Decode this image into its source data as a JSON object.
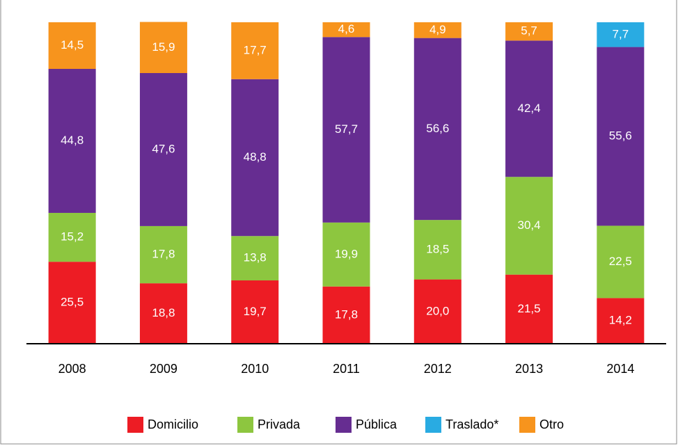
{
  "chart_data": {
    "type": "stacked_bar",
    "categories": [
      "2008",
      "2009",
      "2010",
      "2011",
      "2012",
      "2013",
      "2014"
    ],
    "series": [
      {
        "name": "Domicilio",
        "color": "#ed1c24",
        "values": [
          25.5,
          18.8,
          19.7,
          17.8,
          20.0,
          21.5,
          14.2
        ],
        "value_labels": [
          "25,5",
          "18,8",
          "19,7",
          "17,8",
          "20,0",
          "21,5",
          "14,2"
        ]
      },
      {
        "name": "Privada",
        "color": "#8dc63f",
        "values": [
          15.2,
          17.8,
          13.8,
          19.9,
          18.5,
          30.4,
          22.5
        ],
        "value_labels": [
          "15,2",
          "17,8",
          "13,8",
          "19,9",
          "18,5",
          "30,4",
          "22,5"
        ]
      },
      {
        "name": "Pública",
        "color": "#662d91",
        "values": [
          44.8,
          47.6,
          48.8,
          57.7,
          56.6,
          42.4,
          55.6
        ],
        "value_labels": [
          "44,8",
          "47,6",
          "48,8",
          "57,7",
          "56,6",
          "42,4",
          "55,6"
        ]
      },
      {
        "name": "Traslado*",
        "color": "#29abe2",
        "values": [
          null,
          null,
          null,
          null,
          null,
          null,
          7.7
        ],
        "value_labels": [
          null,
          null,
          null,
          null,
          null,
          null,
          "7,7"
        ]
      },
      {
        "name": "Otro",
        "color": "#f7941d",
        "values": [
          14.5,
          15.9,
          17.7,
          4.6,
          4.9,
          5.7,
          null
        ],
        "value_labels": [
          "14,5",
          "15,9",
          "17,7",
          "4,6",
          "4,9",
          "5,7",
          null
        ]
      }
    ],
    "ylim": [
      0,
      100
    ],
    "legend": "bottom"
  }
}
